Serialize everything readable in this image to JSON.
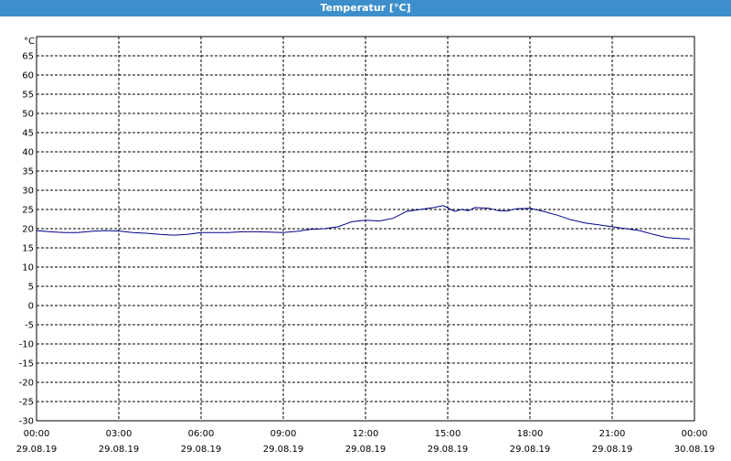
{
  "window": {
    "title": "Temperatur [°C]"
  },
  "chart_data": {
    "type": "line",
    "title": "Temperatur [°C]",
    "ylabel": "°C",
    "ylim": [
      -30,
      70
    ],
    "yticks": [
      65,
      60,
      55,
      50,
      45,
      40,
      35,
      30,
      25,
      20,
      15,
      10,
      5,
      0,
      -5,
      -10,
      -15,
      -20,
      -25,
      -30
    ],
    "xlim": [
      "2019-08-29 00:00",
      "2019-08-30 00:00"
    ],
    "xticks": [
      {
        "time": "00:00",
        "date": "29.08.19"
      },
      {
        "time": "03:00",
        "date": "29.08.19"
      },
      {
        "time": "06:00",
        "date": "29.08.19"
      },
      {
        "time": "09:00",
        "date": "29.08.19"
      },
      {
        "time": "12:00",
        "date": "29.08.19"
      },
      {
        "time": "15:00",
        "date": "29.08.19"
      },
      {
        "time": "18:00",
        "date": "29.08.19"
      },
      {
        "time": "21:00",
        "date": "29.08.19"
      },
      {
        "time": "00:00",
        "date": "30.08.19"
      }
    ],
    "grid": true,
    "series": [
      {
        "color": "#00008b",
        "x": [
          "2019-08-29 00:00",
          "2019-08-29 00:30",
          "2019-08-29 01:00",
          "2019-08-29 01:30",
          "2019-08-29 02:00",
          "2019-08-29 02:30",
          "2019-08-29 03:00",
          "2019-08-29 03:30",
          "2019-08-29 04:00",
          "2019-08-29 04:30",
          "2019-08-29 05:00",
          "2019-08-29 05:30",
          "2019-08-29 06:00",
          "2019-08-29 06:30",
          "2019-08-29 07:00",
          "2019-08-29 07:30",
          "2019-08-29 08:00",
          "2019-08-29 08:30",
          "2019-08-29 09:00",
          "2019-08-29 09:30",
          "2019-08-29 10:00",
          "2019-08-29 10:30",
          "2019-08-29 11:00",
          "2019-08-29 11:30",
          "2019-08-29 12:00",
          "2019-08-29 12:30",
          "2019-08-29 13:00",
          "2019-08-29 13:30",
          "2019-08-29 14:00",
          "2019-08-29 14:30",
          "2019-08-29 14:50",
          "2019-08-29 15:15",
          "2019-08-29 15:30",
          "2019-08-29 15:45",
          "2019-08-29 16:00",
          "2019-08-29 16:30",
          "2019-08-29 16:50",
          "2019-08-29 17:10",
          "2019-08-29 17:30",
          "2019-08-29 18:00",
          "2019-08-29 18:30",
          "2019-08-29 19:00",
          "2019-08-29 19:30",
          "2019-08-29 20:00",
          "2019-08-29 20:30",
          "2019-08-29 21:00",
          "2019-08-29 21:30",
          "2019-08-29 22:00",
          "2019-08-29 22:30",
          "2019-08-29 23:00",
          "2019-08-29 23:30",
          "2019-08-29 23:50"
        ],
        "y": [
          19.5,
          19.2,
          19.0,
          19.0,
          19.3,
          19.5,
          19.4,
          19.0,
          18.8,
          18.5,
          18.3,
          18.5,
          19.0,
          19.0,
          19.0,
          19.2,
          19.2,
          19.1,
          19.0,
          19.3,
          19.8,
          20.0,
          20.5,
          21.8,
          22.2,
          22.0,
          22.7,
          24.5,
          25.0,
          25.5,
          26.0,
          24.5,
          25.0,
          24.7,
          25.5,
          25.3,
          24.7,
          24.6,
          25.2,
          25.3,
          24.5,
          23.5,
          22.3,
          21.5,
          21.0,
          20.5,
          20.0,
          19.5,
          18.5,
          17.7,
          17.4,
          17.3
        ]
      }
    ]
  }
}
